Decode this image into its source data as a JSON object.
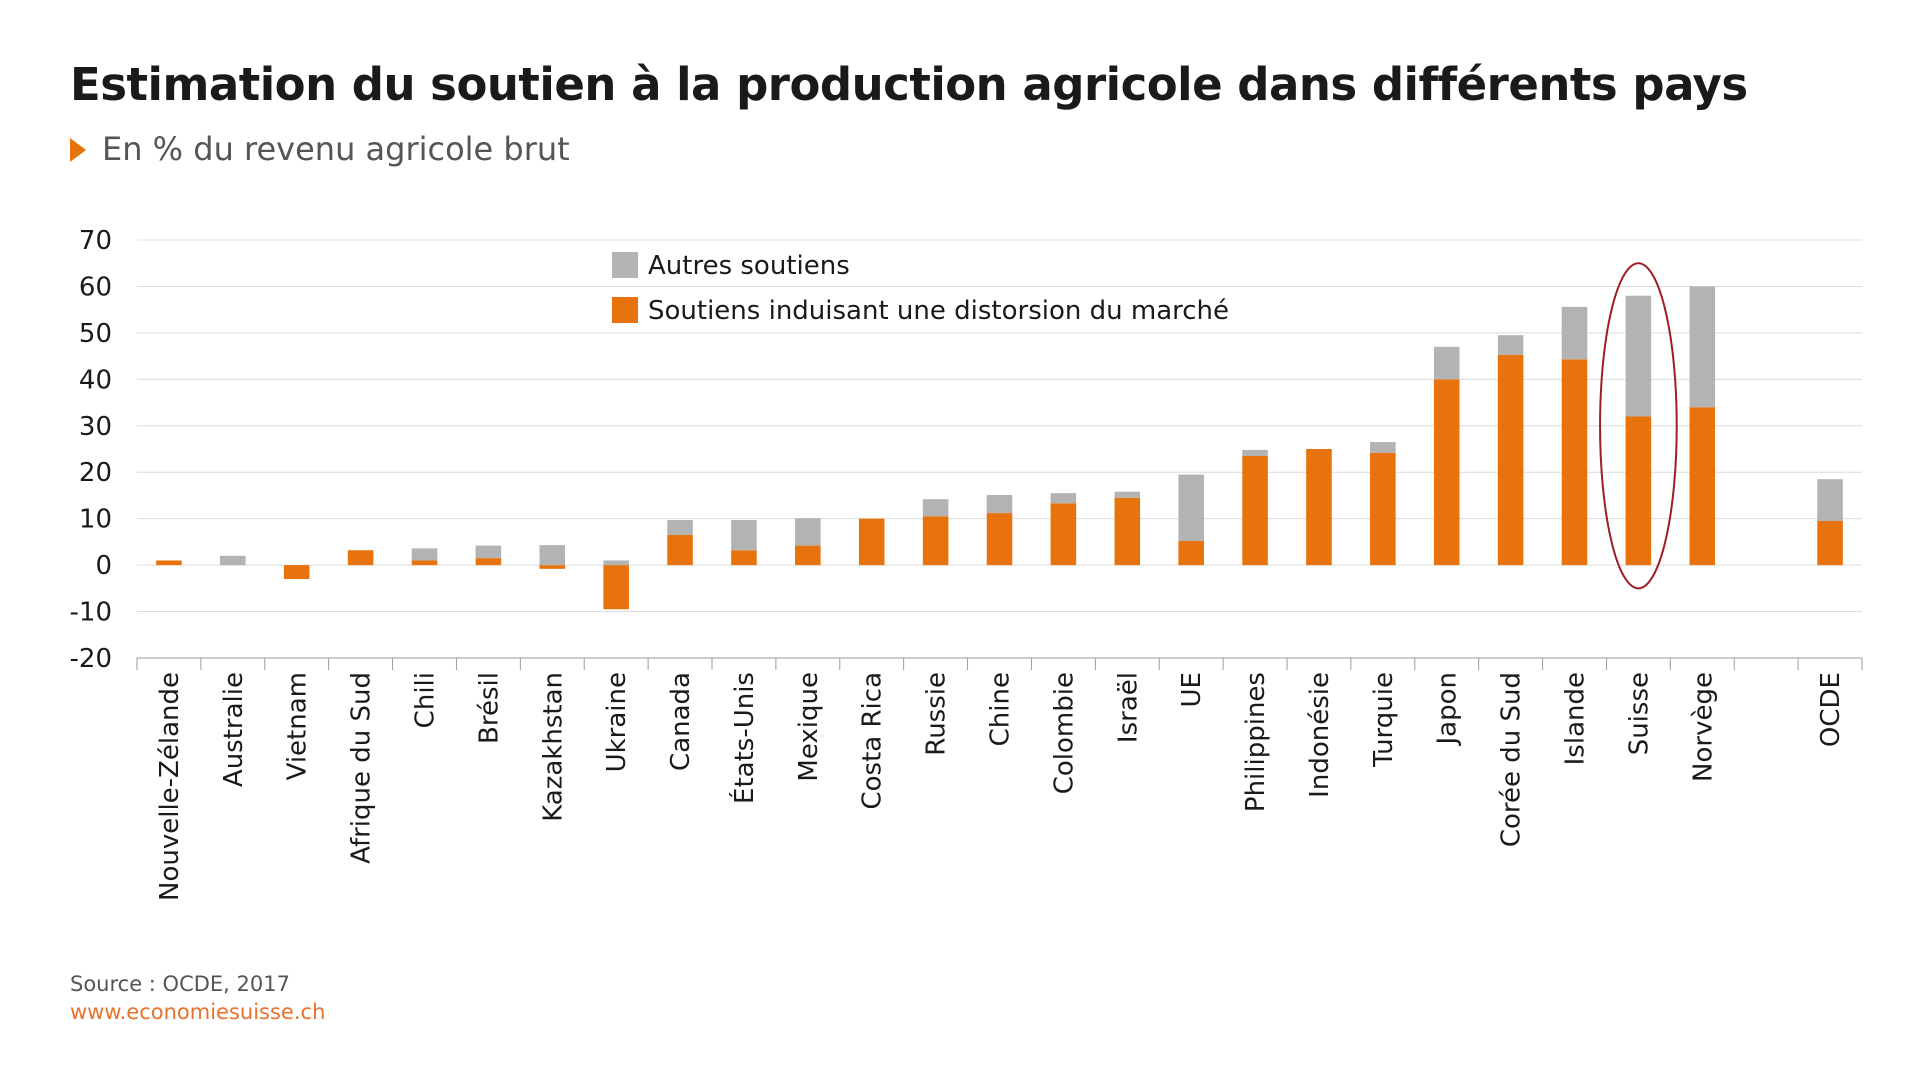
{
  "header": {
    "title": "Estimation du soutien à la production agricole dans différents pays",
    "subtitle": "En % du revenu agricole brut"
  },
  "footer": {
    "source": "Source : OCDE, 2017",
    "url": "www.economiesuisse.ch"
  },
  "colors": {
    "accent": "#e8720c",
    "other": "#b3b3b3",
    "highlight": "#a01d26",
    "grid": "#dcdcdc"
  },
  "chart_data": {
    "type": "bar",
    "stacked": true,
    "title": "Estimation du soutien à la production agricole dans différents pays",
    "subtitle": "En % du revenu agricole brut",
    "ylim": [
      -20,
      70
    ],
    "yticks": [
      70,
      60,
      50,
      40,
      30,
      20,
      10,
      0,
      -10,
      -20
    ],
    "grid": true,
    "legend_position": "top-center",
    "categories": [
      "Nouvelle-Zélande",
      "Australie",
      "Vietnam",
      "Afrique du Sud",
      "Chili",
      "Brésil",
      "Kazakhstan",
      "Ukraine",
      "Canada",
      "États-Unis",
      "Mexique",
      "Costa Rica",
      "Russie",
      "Chine",
      "Colombie",
      "Israël",
      "UE",
      "Philippines",
      "Indonésie",
      "Turquie",
      "Japon",
      "Corée du Sud",
      "Islande",
      "Suisse",
      "Norvège",
      "",
      "OCDE"
    ],
    "series": [
      {
        "name": "Soutiens induisant une distorsion du marché",
        "color": "#e8720c",
        "values": [
          1,
          0,
          -3,
          3.2,
          1,
          1.5,
          -0.8,
          -9.5,
          6.5,
          3.2,
          4.2,
          10,
          10.5,
          11.2,
          13.3,
          14.5,
          5.2,
          23.5,
          25,
          24.2,
          40,
          45.3,
          44.3,
          32,
          34,
          null,
          9.5
        ]
      },
      {
        "name": "Autres soutiens",
        "color": "#b3b3b3",
        "values": [
          0,
          2,
          0,
          0,
          2.6,
          2.7,
          4.3,
          1,
          3.2,
          6.5,
          5.9,
          0,
          3.7,
          3.9,
          2.2,
          1.3,
          14.3,
          1.3,
          0,
          2.3,
          7,
          4.2,
          11.3,
          26,
          26,
          null,
          9
        ]
      }
    ],
    "highlighted_category": "Suisse"
  }
}
